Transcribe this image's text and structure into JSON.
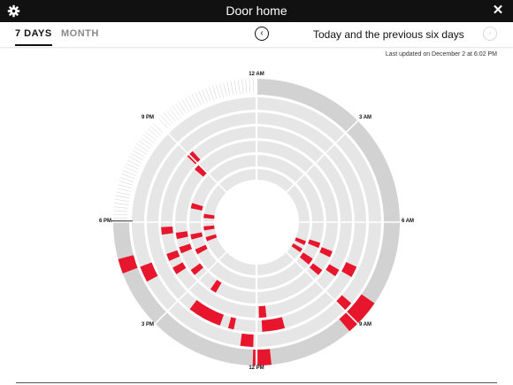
{
  "window": {
    "title": "Door home"
  },
  "tabs": [
    {
      "label": "7 DAYS",
      "active": true
    },
    {
      "label": "MONTH",
      "active": false
    }
  ],
  "range": {
    "label": "Today and the previous six days"
  },
  "updated": "Last updated on December 2 at 6:02 PM",
  "hours": {
    "h12am": "12 AM",
    "h3am": "3 AM",
    "h6am": "6 AM",
    "h9am": "9 AM",
    "h12pm": "12 PM",
    "h3pm": "3 PM",
    "h6pm": "6 PM",
    "h9pm": "9 PM"
  },
  "colors": {
    "event": "#e8162c",
    "ring": "#e6e6e6",
    "outer_ring": "#d2d2d2",
    "background": "#ffffff"
  },
  "icons": {
    "settings": "gear-icon",
    "close": "close-icon",
    "prev": "chevron-left-icon",
    "next": "chevron-right-icon"
  },
  "clock": {
    "current_time_hours": 18.03,
    "days_shown": 7,
    "events": [
      {
        "ring": 0,
        "start": 8.3,
        "end": 9.3
      },
      {
        "ring": 0,
        "start": 11.6,
        "end": 12.1
      },
      {
        "ring": 0,
        "start": 16.6,
        "end": 17.0
      },
      {
        "ring": 1,
        "start": 8.7,
        "end": 9.0
      },
      {
        "ring": 1,
        "start": 16.1,
        "end": 16.6
      },
      {
        "ring": 1,
        "start": 12.1,
        "end": 12.5
      },
      {
        "ring": 2,
        "start": 13.3,
        "end": 14.5
      },
      {
        "ring": 2,
        "start": 7.6,
        "end": 8.0
      },
      {
        "ring": 2,
        "start": 11.0,
        "end": 11.8
      },
      {
        "ring": 2,
        "start": 12.8,
        "end": 13.0
      },
      {
        "ring": 2,
        "start": 13.8,
        "end": 14.0
      },
      {
        "ring": 3,
        "start": 17.5,
        "end": 17.8
      },
      {
        "ring": 3,
        "start": 16.4,
        "end": 16.7
      },
      {
        "ring": 3,
        "start": 15.8,
        "end": 16.1
      },
      {
        "ring": 3,
        "start": 11.6,
        "end": 11.9
      },
      {
        "ring": 3,
        "start": 8.0,
        "end": 8.3
      },
      {
        "ring": 3,
        "start": 20.9,
        "end": 21.2
      },
      {
        "ring": 4,
        "start": 17.2,
        "end": 17.5
      },
      {
        "ring": 4,
        "start": 16.5,
        "end": 16.8
      },
      {
        "ring": 4,
        "start": 15.3,
        "end": 15.6
      },
      {
        "ring": 4,
        "start": 7.4,
        "end": 7.7
      },
      {
        "ring": 4,
        "start": 14.0,
        "end": 14.3
      },
      {
        "ring": 4,
        "start": 20.7,
        "end": 21.0
      },
      {
        "ring": 4,
        "start": 8.4,
        "end": 8.7
      },
      {
        "ring": 5,
        "start": 18.8,
        "end": 19.1
      },
      {
        "ring": 5,
        "start": 17.0,
        "end": 17.3
      },
      {
        "ring": 5,
        "start": 16.1,
        "end": 16.4
      },
      {
        "ring": 5,
        "start": 8.2,
        "end": 8.6
      },
      {
        "ring": 5,
        "start": 7.2,
        "end": 7.5
      },
      {
        "ring": 6,
        "start": 18.3,
        "end": 18.6
      },
      {
        "ring": 6,
        "start": 17.4,
        "end": 17.7
      },
      {
        "ring": 6,
        "start": 16.6,
        "end": 16.9
      },
      {
        "ring": 6,
        "start": 8.0,
        "end": 8.3
      },
      {
        "ring": 6,
        "start": 7.4,
        "end": 7.7
      }
    ]
  }
}
